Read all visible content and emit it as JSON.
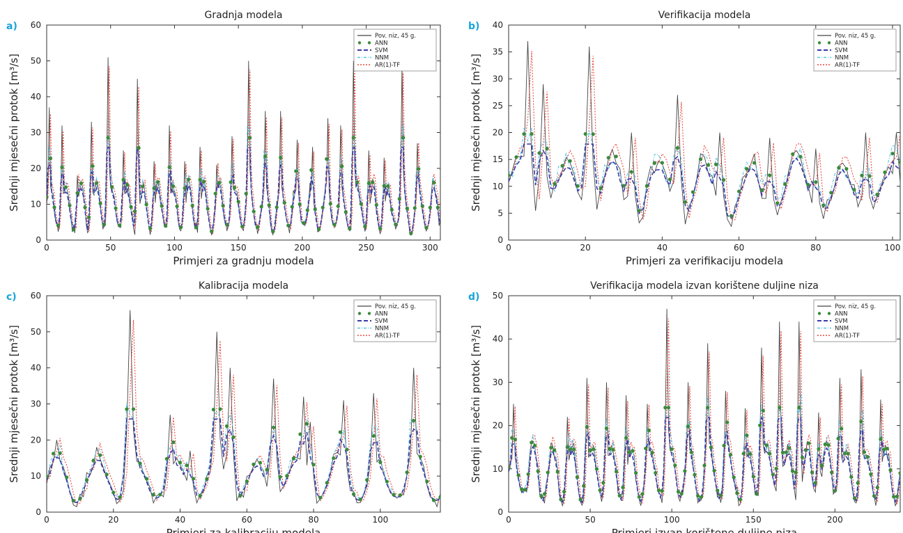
{
  "chart_data": [
    {
      "panel": "a)",
      "type": "line",
      "title": "Gradnja modela",
      "xlabel": "Primjeri za gradnju modela",
      "ylabel": "Srednji mjesečni protok [m³/s]",
      "xlim": [
        0,
        308
      ],
      "ylim": [
        0,
        60
      ],
      "xticks": [
        0,
        50,
        100,
        150,
        200,
        250,
        300
      ],
      "yticks": [
        0,
        10,
        20,
        30,
        40,
        50,
        60
      ],
      "legend": [
        "Pov. niz, 45 g.",
        "ANN",
        "SVM",
        "NNM",
        "AR(1)-TF"
      ],
      "legend_position": "top-right",
      "peaks": [
        [
          2,
          37
        ],
        [
          12,
          32
        ],
        [
          24,
          18
        ],
        [
          35,
          33
        ],
        [
          48,
          51
        ],
        [
          60,
          25
        ],
        [
          71,
          45
        ],
        [
          84,
          22
        ],
        [
          96,
          32
        ],
        [
          108,
          22
        ],
        [
          120,
          26
        ],
        [
          133,
          21
        ],
        [
          145,
          29
        ],
        [
          158,
          50
        ],
        [
          171,
          36
        ],
        [
          183,
          36
        ],
        [
          196,
          28
        ],
        [
          208,
          26
        ],
        [
          220,
          34
        ],
        [
          230,
          32
        ],
        [
          240,
          50
        ],
        [
          252,
          25
        ],
        [
          264,
          23
        ],
        [
          278,
          49
        ],
        [
          290,
          27
        ],
        [
          302,
          17
        ]
      ]
    },
    {
      "panel": "b)",
      "type": "line",
      "title": "Verifikacija modela",
      "xlabel": "Primjeri za verifikaciju modela",
      "ylabel": "Srednji mjesečni protok [m³/s]",
      "xlim": [
        0,
        102
      ],
      "ylim": [
        0,
        40
      ],
      "xticks": [
        0,
        20,
        40,
        60,
        80,
        100
      ],
      "yticks": [
        0,
        5,
        10,
        15,
        20,
        25,
        30,
        35,
        40
      ],
      "legend": [
        "Pov. niz, 45 g.",
        "ANN",
        "SVM",
        "NNM",
        "AR(1)-TF"
      ],
      "legend_position": "top-right",
      "peaks": [
        [
          5,
          37
        ],
        [
          9,
          29
        ],
        [
          21,
          36
        ],
        [
          32,
          20
        ],
        [
          44,
          27
        ],
        [
          55,
          20
        ],
        [
          68,
          19
        ],
        [
          80,
          17
        ],
        [
          93,
          20
        ],
        [
          101,
          20
        ]
      ]
    },
    {
      "panel": "c)",
      "type": "line",
      "title": "Kalibracija modela",
      "xlabel": "Primjeri za kalibraciju modela",
      "ylabel": "Srednji mjesečni protok [m³/s]",
      "xlim": [
        0,
        118
      ],
      "ylim": [
        0,
        60
      ],
      "xticks": [
        0,
        20,
        40,
        60,
        80,
        100
      ],
      "yticks": [
        0,
        10,
        20,
        30,
        40,
        50,
        60
      ],
      "legend": [
        "Pov. niz, 45 g.",
        "ANN",
        "SVM",
        "NNM",
        "AR(1)-TF"
      ],
      "legend_position": "top-right",
      "peaks": [
        [
          3,
          20
        ],
        [
          15,
          18
        ],
        [
          25,
          56
        ],
        [
          37,
          27
        ],
        [
          43,
          17
        ],
        [
          51,
          50
        ],
        [
          55,
          40
        ],
        [
          68,
          37
        ],
        [
          77,
          32
        ],
        [
          79,
          25
        ],
        [
          89,
          31
        ],
        [
          98,
          33
        ],
        [
          110,
          40
        ]
      ]
    },
    {
      "panel": "d)",
      "type": "line",
      "title": "Verifikacija modela izvan korištene duljine niza",
      "xlabel": "Primjeri izvan korištene duljine niza",
      "ylabel": "Srednji mjesečni protok [m³/s]",
      "xlim": [
        0,
        240
      ],
      "ylim": [
        0,
        50
      ],
      "xticks": [
        0,
        50,
        100,
        150,
        200
      ],
      "yticks": [
        0,
        10,
        20,
        30,
        40,
        50
      ],
      "legend": [
        "Pov. niz, 45 g.",
        "ANN",
        "SVM",
        "NNM",
        "AR(1)-TF"
      ],
      "legend_position": "top-right",
      "peaks": [
        [
          3,
          25
        ],
        [
          36,
          22
        ],
        [
          48,
          31
        ],
        [
          60,
          30
        ],
        [
          72,
          27
        ],
        [
          85,
          25
        ],
        [
          97,
          47
        ],
        [
          110,
          30
        ],
        [
          122,
          39
        ],
        [
          133,
          28
        ],
        [
          145,
          24
        ],
        [
          155,
          38
        ],
        [
          166,
          44
        ],
        [
          178,
          44
        ],
        [
          190,
          23
        ],
        [
          203,
          31
        ],
        [
          216,
          33
        ],
        [
          228,
          26
        ]
      ]
    }
  ]
}
